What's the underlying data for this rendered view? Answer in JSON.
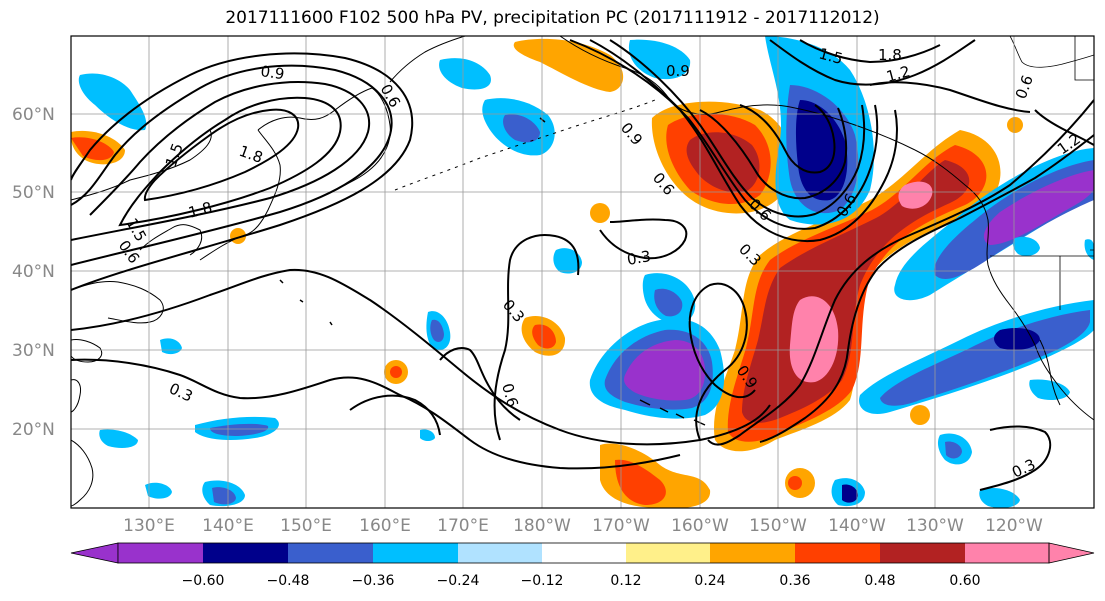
{
  "title": "2017111600 F102 500 hPa PV, precipitation PC (2017111912 - 2017112012)",
  "lat_labels": [
    "60°N",
    "50°N",
    "40°N",
    "30°N",
    "20°N"
  ],
  "lon_labels": [
    "130°E",
    "140°E",
    "150°E",
    "160°E",
    "170°E",
    "180°W",
    "170°W",
    "160°W",
    "150°W",
    "140°W",
    "130°W",
    "120°W"
  ],
  "colorbar": {
    "tick_labels": [
      "−0.60",
      "−0.48",
      "−0.36",
      "−0.24",
      "−0.12",
      "0.12",
      "0.24",
      "0.36",
      "0.48",
      "0.60"
    ],
    "colors": [
      "#9932cc",
      "#00008b",
      "#3a5fcd",
      "#00bfff",
      "#b0e2ff",
      "#ffffff",
      "#fff08a",
      "#ffa500",
      "#ff4000",
      "#b22222",
      "#ff82ab"
    ]
  },
  "contour_labels": [
    "0.9",
    "0.6",
    "1.5",
    "1.8",
    "1.8",
    "1.5",
    "0.6",
    "0.3",
    "0.9",
    "0.6",
    "1.5",
    "1.8",
    "1.2",
    "0.9",
    "0.6",
    "0.3",
    "0.3",
    "0.3",
    "0.6",
    "0.9",
    "0.6",
    "1.2",
    "0.3",
    "0.6"
  ]
}
